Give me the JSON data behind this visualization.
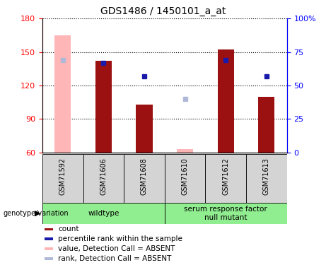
{
  "title": "GDS1486 / 1450101_a_at",
  "samples": [
    "GSM71592",
    "GSM71606",
    "GSM71608",
    "GSM71610",
    "GSM71612",
    "GSM71613"
  ],
  "bar_values": [
    null,
    142,
    103,
    null,
    152,
    110
  ],
  "bar_absent_values": [
    165,
    null,
    null,
    63,
    null,
    null
  ],
  "blue_squares": [
    null,
    140,
    128,
    null,
    143,
    128
  ],
  "blue_absent_squares": [
    143,
    null,
    null,
    108,
    null,
    null
  ],
  "ymin": 60,
  "ymax": 180,
  "yticks": [
    60,
    90,
    120,
    150,
    180
  ],
  "y2min": 0,
  "y2max": 100,
  "y2ticks": [
    0,
    25,
    50,
    75,
    100
  ],
  "groups": [
    {
      "label": "wildtype",
      "start": 0,
      "end": 3
    },
    {
      "label": "serum response factor\nnull mutant",
      "start": 3,
      "end": 6
    }
  ],
  "bar_color": "#9b1111",
  "bar_absent_color": "#ffb6b6",
  "blue_color": "#1a1aaa",
  "blue_absent_color": "#b0b8d8",
  "legend": [
    {
      "label": "count",
      "color": "#9b1111"
    },
    {
      "label": "percentile rank within the sample",
      "color": "#1a1aaa"
    },
    {
      "label": "value, Detection Call = ABSENT",
      "color": "#ffb6b6"
    },
    {
      "label": "rank, Detection Call = ABSENT",
      "color": "#b0b8d8"
    }
  ]
}
